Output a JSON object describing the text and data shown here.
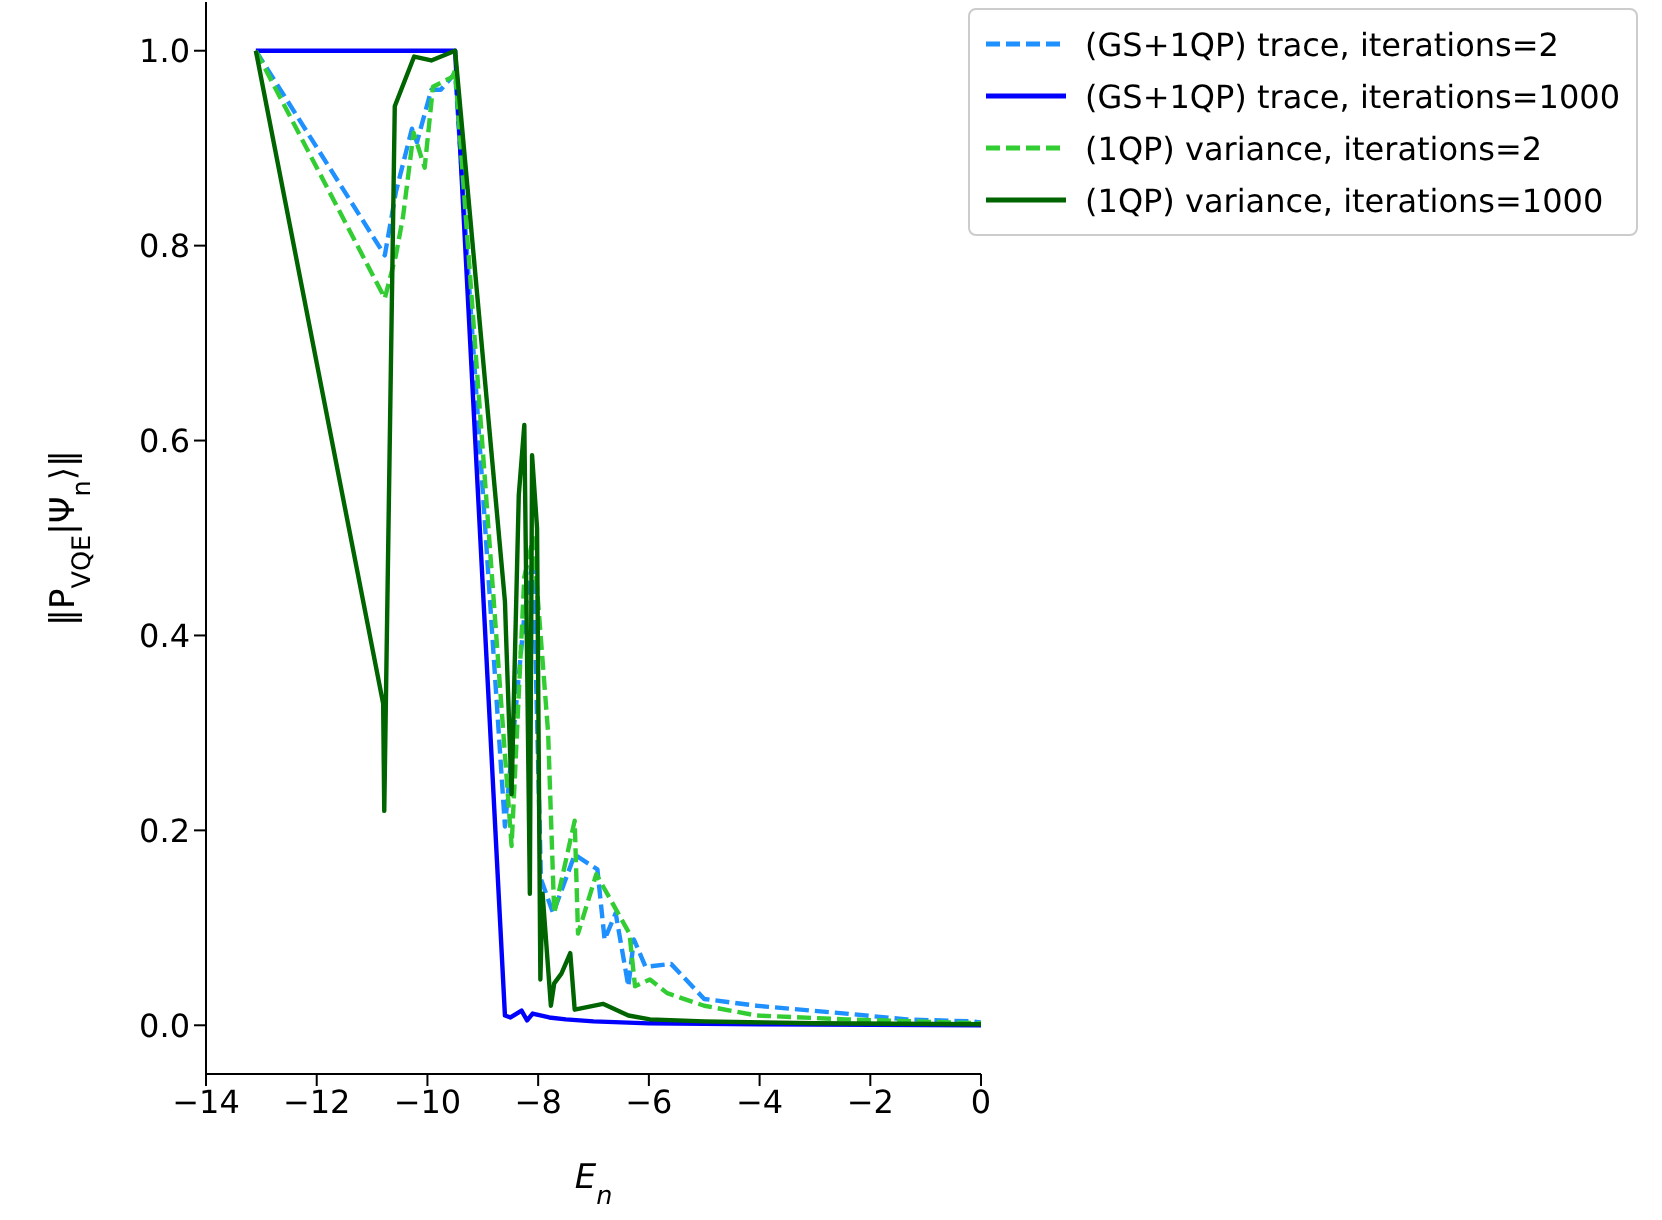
{
  "chart_data": {
    "type": "line",
    "xlabel": "E$_{n}$",
    "ylabel": "‖P$_{VQE}$|Ψ$_{n}$⟩‖",
    "xlim": [
      -14,
      0
    ],
    "xticks": [
      -14,
      -12,
      -10,
      -8,
      -6,
      -4,
      -2,
      0
    ],
    "ylim": [
      -0.05,
      1.05
    ],
    "yticks": [
      {
        "value": 0,
        "label": "0.0"
      },
      {
        "value": 0.2,
        "label": "0.2"
      },
      {
        "value": 0.4,
        "label": "0.4"
      },
      {
        "value": 0.6,
        "label": "0.6"
      },
      {
        "value": 0.8,
        "label": "0.8"
      },
      {
        "value": 1,
        "label": "1.0"
      }
    ],
    "grid": false,
    "legend": "top right",
    "marker": "none",
    "series": [
      {
        "name": "(GS+1QP) trace, iterations=2",
        "color": "#1e90ff",
        "line_style": "dashed",
        "x": [
          -13.1,
          -10.77,
          -10.57,
          -10.28,
          -10.19,
          -9.93,
          -9.76,
          -9.5,
          -8.6,
          -8.25,
          -8.09,
          -7.95,
          -7.73,
          -7.34,
          -6.93,
          -6.8,
          -6.6,
          -6.37,
          -6.27,
          -6.06,
          -5.6,
          -5.0,
          -4.05,
          -2.44,
          -1.34,
          -0.17,
          0
        ],
        "values": [
          1,
          0.79,
          0.855,
          0.92,
          0.906,
          0.96,
          0.96,
          0.977,
          0.204,
          0.42,
          0.48,
          0.15,
          0.115,
          0.175,
          0.16,
          0.088,
          0.115,
          0.04,
          0.088,
          0.06,
          0.063,
          0.027,
          0.02,
          0.012,
          0.006,
          0.004,
          0.003
        ]
      },
      {
        "name": "(GS+1QP) trace, iterations=1000",
        "color": "#0000ff",
        "line_style": "solid",
        "x": [
          -13.1,
          -9.5,
          -8.6,
          -8.5,
          -8.3,
          -8.2,
          -8.1,
          -7.8,
          -7.5,
          -7,
          -6,
          -4,
          0
        ],
        "values": [
          1,
          1,
          0.01,
          0.008,
          0.015,
          0.005,
          0.012,
          0.008,
          0.006,
          0.004,
          0.002,
          0.001,
          0
        ]
      },
      {
        "name": "(1QP) variance, iterations=2",
        "color": "#32cd32",
        "line_style": "dashed",
        "x": [
          -13.1,
          -10.77,
          -10.57,
          -10.44,
          -10.25,
          -10.05,
          -9.9,
          -9.55,
          -9.5,
          -8.48,
          -8.25,
          -8.09,
          -7.82,
          -7.71,
          -7.34,
          -7.28,
          -6.95,
          -6.35,
          -6.25,
          -5.98,
          -5.67,
          -5.0,
          -4.05,
          -2.44,
          0
        ],
        "values": [
          1,
          0.746,
          0.79,
          0.83,
          0.916,
          0.88,
          0.963,
          0.973,
          0.98,
          0.184,
          0.46,
          0.5,
          0.3,
          0.115,
          0.21,
          0.094,
          0.155,
          0.094,
          0.04,
          0.047,
          0.033,
          0.02,
          0.01,
          0.006,
          0.002
        ]
      },
      {
        "name": "(1QP) variance, iterations=1000",
        "color": "#006400",
        "line_style": "solid",
        "x": [
          -13.1,
          -10.8,
          -10.78,
          -10.59,
          -10.24,
          -9.93,
          -9.5,
          -8.6,
          -8.58,
          -8.48,
          -8.35,
          -8.25,
          -8.15,
          -8.11,
          -8.02,
          -7.96,
          -7.92,
          -7.77,
          -7.71,
          -7.58,
          -7.42,
          -7.34,
          -6.83,
          -6.37,
          -5.98,
          -5,
          -3,
          0
        ],
        "values": [
          1,
          0.33,
          0.22,
          0.943,
          0.994,
          0.99,
          1,
          0.435,
          0.4,
          0.237,
          0.544,
          0.616,
          0.135,
          0.585,
          0.51,
          0.047,
          0.135,
          0.02,
          0.043,
          0.053,
          0.074,
          0.016,
          0.022,
          0.01,
          0.006,
          0.004,
          0.002,
          0.001
        ]
      }
    ]
  }
}
